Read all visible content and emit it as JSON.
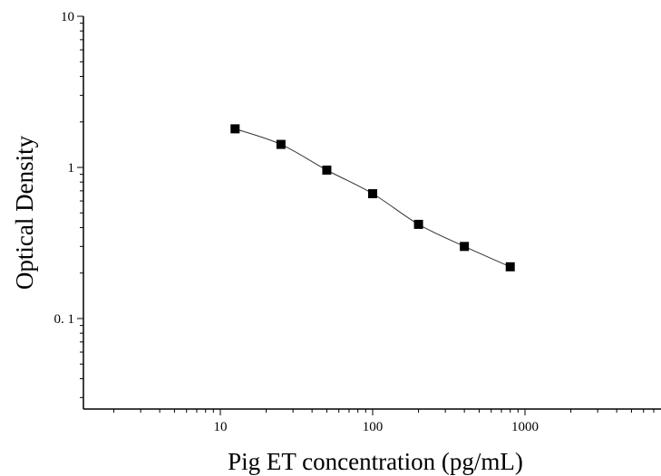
{
  "chart_data": {
    "type": "scatter",
    "title": "",
    "xlabel": "Pig ET concentration (pg/mL)",
    "ylabel": "Optical Density",
    "x_scale": "log",
    "y_scale": "log",
    "xlim": [
      1.78,
      800
    ],
    "ylim": [
      0.025,
      10
    ],
    "x_ticks": [
      {
        "value": 10,
        "label": "10"
      },
      {
        "value": 100,
        "label": "100"
      },
      {
        "value": 1000,
        "label": "1000"
      }
    ],
    "y_ticks": [
      {
        "value": 0.1,
        "label": "0. 1"
      },
      {
        "value": 1,
        "label": "1"
      },
      {
        "value": 10,
        "label": "10"
      }
    ],
    "grid": false,
    "legend": "none",
    "series": [
      {
        "marker": "square",
        "color": "#000000",
        "line": "smooth-fit",
        "x": [
          12.5,
          25,
          50,
          100,
          200,
          400,
          800
        ],
        "y": [
          1.8,
          1.42,
          0.96,
          0.67,
          0.42,
          0.3,
          0.22
        ]
      }
    ]
  }
}
